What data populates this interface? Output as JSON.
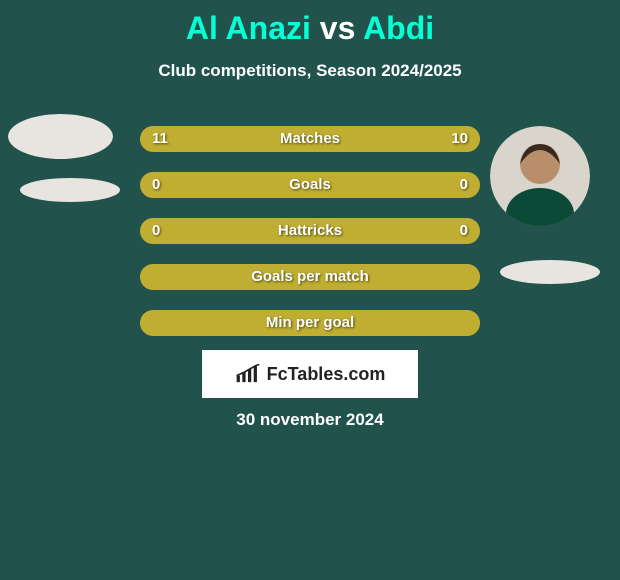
{
  "colors": {
    "page_bg": "#21534c",
    "text_white": "#ffffff",
    "accent": "#06ffd5",
    "bar_track": "#9a912e",
    "left_fill": "#bfae31",
    "right_fill": "#bfae31",
    "brand_bg": "#ffffff",
    "brand_text": "#222222",
    "shadow_ellipse": "#e8e5e0"
  },
  "title": {
    "player1": "Al Anazi",
    "vs": "vs",
    "player2": "Abdi"
  },
  "subtitle": "Club competitions, Season 2024/2025",
  "bars": [
    {
      "label": "Matches",
      "left_val": "11",
      "right_val": "10",
      "left_pct": 52,
      "right_pct": 48
    },
    {
      "label": "Goals",
      "left_val": "0",
      "right_val": "0",
      "left_pct": 50,
      "right_pct": 50
    },
    {
      "label": "Hattricks",
      "left_val": "0",
      "right_val": "0",
      "left_pct": 50,
      "right_pct": 50
    },
    {
      "label": "Goals per match",
      "left_val": "",
      "right_val": "",
      "left_pct": 100,
      "right_pct": 0
    },
    {
      "label": "Min per goal",
      "left_val": "",
      "right_val": "",
      "left_pct": 100,
      "right_pct": 0
    }
  ],
  "brand": "FcTables.com",
  "date": "30 november 2024"
}
